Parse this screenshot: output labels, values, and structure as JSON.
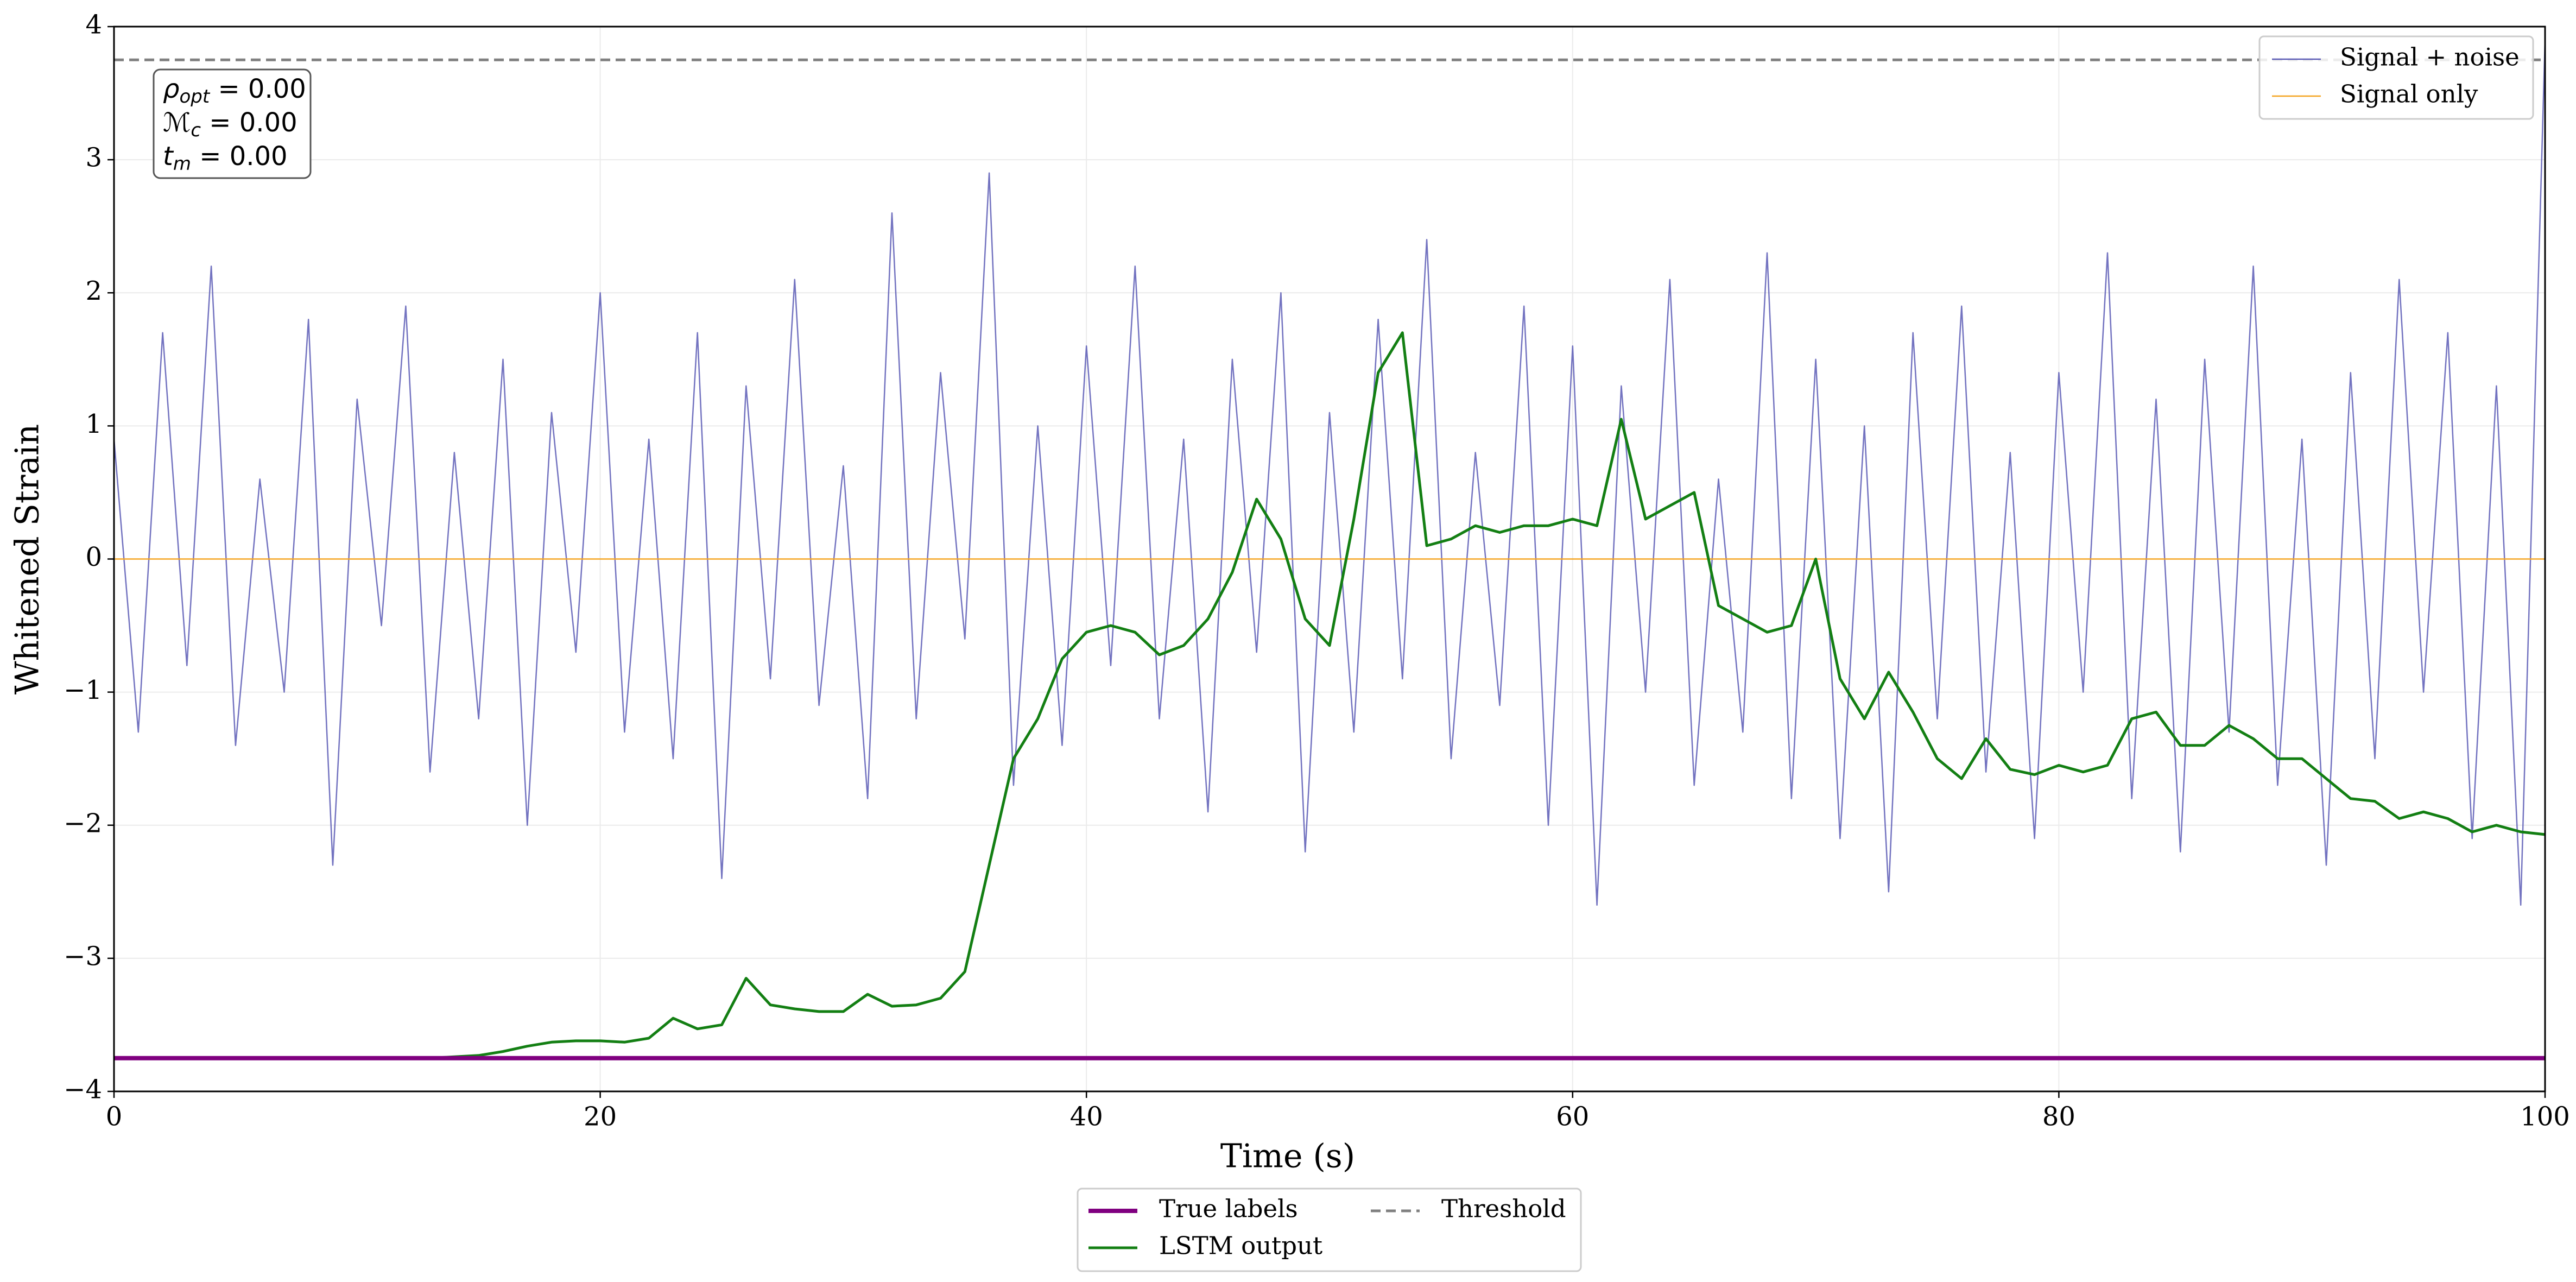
{
  "chart_data": {
    "type": "line",
    "xlabel": "Time (s)",
    "ylabel": "Whitened Strain",
    "xlim": [
      0,
      100
    ],
    "ylim": [
      -4,
      4
    ],
    "xticks": [
      0,
      20,
      40,
      60,
      80,
      100
    ],
    "yticks": [
      {
        "value": -4,
        "label": "−4"
      },
      {
        "value": -3,
        "label": "−3"
      },
      {
        "value": -2,
        "label": "−2"
      },
      {
        "value": -1,
        "label": "−1"
      },
      0,
      1,
      2,
      3,
      4
    ],
    "grid": true,
    "x": [
      0,
      1,
      2,
      3,
      4,
      5,
      6,
      7,
      8,
      9,
      10,
      11,
      12,
      13,
      14,
      15,
      16,
      17,
      18,
      19,
      20,
      21,
      22,
      23,
      24,
      25,
      26,
      27,
      28,
      29,
      30,
      31,
      32,
      33,
      34,
      35,
      36,
      37,
      38,
      39,
      40,
      41,
      42,
      43,
      44,
      45,
      46,
      47,
      48,
      49,
      50,
      51,
      52,
      53,
      54,
      55,
      56,
      57,
      58,
      59,
      60,
      61,
      62,
      63,
      64,
      65,
      66,
      67,
      68,
      69,
      70,
      71,
      72,
      73,
      74,
      75,
      76,
      77,
      78,
      79,
      80,
      81,
      82,
      83,
      84,
      85,
      86,
      87,
      88,
      89,
      90,
      91,
      92,
      93,
      94,
      95,
      96,
      97,
      98,
      99,
      100
    ],
    "series": [
      {
        "name": "Signal + noise",
        "color": "#5b5bb5",
        "legend": "upper right",
        "values": [
          0.9,
          -1.3,
          1.7,
          -0.8,
          2.2,
          -1.4,
          0.6,
          -1.0,
          1.8,
          -2.3,
          1.2,
          -0.5,
          1.9,
          -1.6,
          0.8,
          -1.2,
          1.5,
          -2.0,
          1.1,
          -0.7,
          2.0,
          -1.3,
          0.9,
          -1.5,
          1.7,
          -2.4,
          1.3,
          -0.9,
          2.1,
          -1.1,
          0.7,
          -1.8,
          2.6,
          -1.2,
          1.4,
          -0.6,
          2.9,
          -1.7,
          1.0,
          -1.4,
          1.6,
          -0.8,
          2.2,
          -1.2,
          0.9,
          -1.9,
          1.5,
          -0.7,
          2.0,
          -2.2,
          1.1,
          -1.3,
          1.8,
          -0.9,
          2.4,
          -1.5,
          0.8,
          -1.1,
          1.9,
          -2.0,
          1.6,
          -2.6,
          1.3,
          -1.0,
          2.1,
          -1.7,
          0.6,
          -1.3,
          2.3,
          -1.8,
          1.5,
          -2.1,
          1.0,
          -2.5,
          1.7,
          -1.2,
          1.9,
          -1.6,
          0.8,
          -2.1,
          1.4,
          -1.0,
          2.3,
          -1.8,
          1.2,
          -2.2,
          1.5,
          -1.3,
          2.2,
          -1.7,
          0.9,
          -2.3,
          1.4,
          -1.5,
          2.1,
          -1.0,
          1.7,
          -2.1,
          1.3,
          -2.6,
          3.9
        ]
      },
      {
        "name": "Signal only",
        "color": "#f5a623",
        "legend": "upper right",
        "values": [
          0,
          0,
          0,
          0,
          0,
          0,
          0,
          0,
          0,
          0,
          0,
          0,
          0,
          0,
          0,
          0,
          0,
          0,
          0,
          0,
          0,
          0,
          0,
          0,
          0,
          0,
          0,
          0,
          0,
          0,
          0,
          0,
          0,
          0,
          0,
          0,
          0,
          0,
          0,
          0,
          0,
          0,
          0,
          0,
          0,
          0,
          0,
          0,
          0,
          0,
          0,
          0,
          0,
          0,
          0,
          0,
          0,
          0,
          0,
          0,
          0,
          0,
          0,
          0,
          0,
          0,
          0,
          0,
          0,
          0,
          0,
          0,
          0,
          0,
          0,
          0,
          0,
          0,
          0,
          0,
          0,
          0,
          0,
          0,
          0,
          0,
          0,
          0,
          0,
          0,
          0,
          0,
          0,
          0,
          0,
          0,
          0,
          0,
          0,
          0,
          0
        ]
      },
      {
        "name": "LSTM output",
        "color": "#137f13",
        "legend": "lower center",
        "values": [
          -3.75,
          -3.75,
          -3.75,
          -3.75,
          -3.75,
          -3.75,
          -3.75,
          -3.75,
          -3.75,
          -3.75,
          -3.75,
          -3.75,
          -3.75,
          -3.75,
          -3.74,
          -3.73,
          -3.7,
          -3.66,
          -3.63,
          -3.62,
          -3.62,
          -3.63,
          -3.6,
          -3.45,
          -3.53,
          -3.5,
          -3.15,
          -3.35,
          -3.38,
          -3.4,
          -3.4,
          -3.27,
          -3.36,
          -3.35,
          -3.3,
          -3.1,
          -2.3,
          -1.5,
          -1.2,
          -0.75,
          -0.55,
          -0.5,
          -0.55,
          -0.72,
          -0.65,
          -0.45,
          -0.1,
          0.45,
          0.15,
          -0.45,
          -0.65,
          0.3,
          1.4,
          1.7,
          0.1,
          0.15,
          0.25,
          0.2,
          0.25,
          0.25,
          0.3,
          0.25,
          1.05,
          0.3,
          0.4,
          0.5,
          -0.35,
          -0.45,
          -0.55,
          -0.5,
          0.0,
          -0.9,
          -1.2,
          -0.85,
          -1.15,
          -1.5,
          -1.65,
          -1.35,
          -1.58,
          -1.62,
          -1.55,
          -1.6,
          -1.55,
          -1.2,
          -1.15,
          -1.4,
          -1.4,
          -1.25,
          -1.35,
          -1.5,
          -1.5,
          -1.65,
          -1.8,
          -1.82,
          -1.95,
          -1.9,
          -1.95,
          -2.05,
          -2.0,
          -2.05,
          -2.07
        ]
      }
    ],
    "hlines": [
      {
        "name": "True labels",
        "value": -3.75,
        "color": "#800080",
        "legend": "lower center"
      },
      {
        "name": "Threshold",
        "value": 3.75,
        "color": "#808080",
        "dashed": true,
        "legend": "lower center"
      }
    ],
    "annotation": [
      {
        "symbol": "ρ",
        "sub": "opt",
        "text": " = 0.00"
      },
      {
        "symbol": "ℳ",
        "sub": "c",
        "text": " = 0.00"
      },
      {
        "symbol": "t",
        "sub": "m",
        "text": " = 0.00"
      }
    ]
  }
}
